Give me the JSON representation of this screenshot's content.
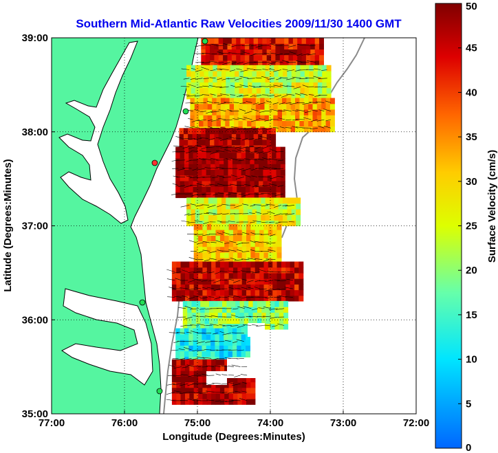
{
  "chart_data": {
    "type": "heatmap",
    "title": "Southern Mid-Atlantic Raw Velocities 2009/11/30 1400 GMT",
    "xlabel": "Longitude (Degrees:Minutes)",
    "ylabel": "Latitude (Degrees:Minutes)",
    "xlim": [
      -77,
      -72
    ],
    "ylim": [
      35,
      39
    ],
    "x_ticks": [
      {
        "value": -77,
        "label": "77:00"
      },
      {
        "value": -76,
        "label": "76:00"
      },
      {
        "value": -75,
        "label": "75:00"
      },
      {
        "value": -74,
        "label": "74:00"
      },
      {
        "value": -73,
        "label": "73:00"
      },
      {
        "value": -72,
        "label": "72:00"
      }
    ],
    "y_ticks": [
      {
        "value": 35,
        "label": "35:00"
      },
      {
        "value": 36,
        "label": "36:00"
      },
      {
        "value": 37,
        "label": "37:00"
      },
      {
        "value": 38,
        "label": "38:00"
      },
      {
        "value": 39,
        "label": "39:00"
      }
    ],
    "grid": "dotted",
    "colorbar": {
      "label": "Surface Velocity (cm/s)",
      "min": 0,
      "max": 50,
      "ticks": [
        {
          "value": 0,
          "label": "0"
        },
        {
          "value": 5,
          "label": "5"
        },
        {
          "value": 10,
          "label": "10"
        },
        {
          "value": 15,
          "label": "15"
        },
        {
          "value": 20,
          "label": "20"
        },
        {
          "value": 25,
          "label": "25"
        },
        {
          "value": 30,
          "label": "30"
        },
        {
          "value": 35,
          "label": "35"
        },
        {
          "value": 40,
          "label": "40"
        },
        {
          "value": 45,
          "label": "45"
        },
        {
          "value": 50,
          "label": "50"
        }
      ],
      "placement": "right"
    },
    "colors": {
      "land": "#55f5a0",
      "ocean": "#ffffff",
      "coastline": "#000000",
      "station": "#22dd55",
      "station_alt": "#ff3333",
      "title": "#0000ee"
    },
    "field_regions": [
      {
        "lat": [
          38.7,
          39.0
        ],
        "lon": [
          -74.95,
          -73.3
        ],
        "speed": 45
      },
      {
        "lat": [
          38.35,
          38.7
        ],
        "lon": [
          -75.15,
          -73.2
        ],
        "speed": 25
      },
      {
        "lat": [
          38.0,
          38.35
        ],
        "lon": [
          -75.1,
          -73.15
        ],
        "speed": 33
      },
      {
        "lat": [
          37.8,
          38.0
        ],
        "lon": [
          -75.25,
          -73.95
        ],
        "speed": 47
      },
      {
        "lat": [
          37.3,
          37.8
        ],
        "lon": [
          -75.3,
          -73.8
        ],
        "speed": 49
      },
      {
        "lat": [
          37.0,
          37.3
        ],
        "lon": [
          -75.15,
          -73.6
        ],
        "speed": 26
      },
      {
        "lat": [
          36.6,
          37.0
        ],
        "lon": [
          -75.05,
          -73.9
        ],
        "speed": 30
      },
      {
        "lat": [
          36.2,
          36.6
        ],
        "lon": [
          -75.35,
          -73.6
        ],
        "speed": 46
      },
      {
        "lat": [
          35.9,
          36.2
        ],
        "lon": [
          -75.2,
          -73.8
        ],
        "speed": 20
      },
      {
        "lat": [
          35.55,
          35.9
        ],
        "lon": [
          -75.3,
          -74.3
        ],
        "speed": 12
      },
      {
        "lat": [
          35.1,
          35.55
        ],
        "lon": [
          -75.35,
          -74.25
        ],
        "speed": 47
      }
    ]
  }
}
